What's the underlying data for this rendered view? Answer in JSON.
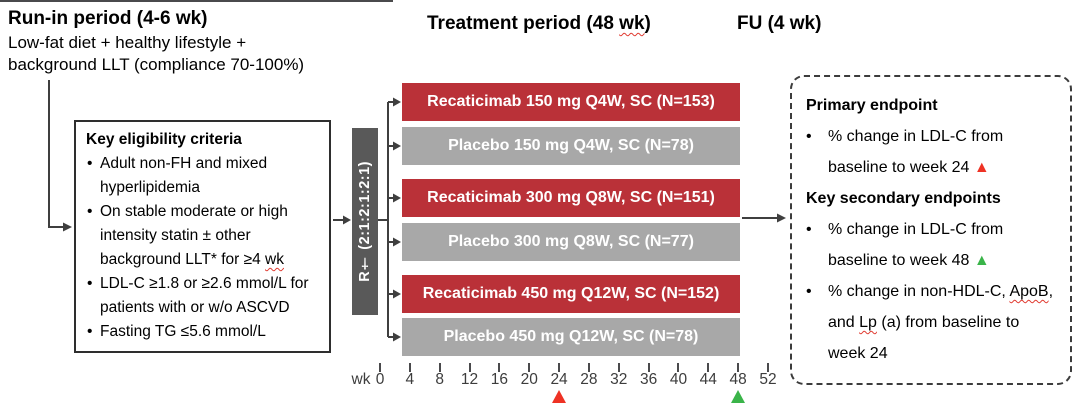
{
  "colors": {
    "active_arm": "#ba3138",
    "placebo_arm": "#a8a8a8",
    "randomization_box": "#595959",
    "marker_red": "#ee3224",
    "marker_green": "#3ab449",
    "connector": "#3f3f3f"
  },
  "glyphs": {
    "bullet": "•"
  },
  "header": {
    "runin_title": "Run-in period (4-6 wk)",
    "runin_desc": "Low-fat diet + healthy lifestyle + background LLT (compliance 70-100%)",
    "treatment_title_pre": "Treatment period (48 ",
    "treatment_title_wavy": "wk",
    "treatment_title_post": ")",
    "fu_title": "FU (4 wk)"
  },
  "eligibility": {
    "title": "Key eligibility criteria",
    "bullet1": "Adult non-FH and mixed hyperlipidemia",
    "bullet2_pre": "On stable moderate or high intensity statin ± other background LLT* for ≥4 ",
    "bullet2_wavy": "wk",
    "bullet3": "LDL-C ≥1.8 or ≥2.6 mmol/L for patients with or w/o ASCVD",
    "bullet4": "Fasting TG ≤5.6 mmol/L"
  },
  "randomization": {
    "label": "R† (2:1:2:1:2:1)"
  },
  "arms": [
    {
      "label": "Recaticimab 150 mg Q4W, SC (N=153)",
      "type": "active"
    },
    {
      "label": "Placebo 150 mg Q4W, SC (N=78)",
      "type": "placebo"
    },
    {
      "label": "Recaticimab 300 mg Q8W, SC (N=151)",
      "type": "active"
    },
    {
      "label": "Placebo 300 mg Q8W, SC (N=77)",
      "type": "placebo"
    },
    {
      "label": "Recaticimab 450 mg Q12W, SC (N=152)",
      "type": "active"
    },
    {
      "label": "Placebo 450 mg Q12W, SC (N=78)",
      "type": "placebo"
    }
  ],
  "axis": {
    "unit_label": "wk",
    "tick_weeks": [
      0,
      4,
      8,
      12,
      16,
      20,
      24,
      28,
      32,
      36,
      40,
      44,
      48,
      52
    ],
    "week_min": 0,
    "week_max": 52,
    "markers": [
      {
        "week": 24,
        "color": "#ee3224",
        "name": "week24-red-triangle-icon"
      },
      {
        "week": 48,
        "color": "#3ab449",
        "name": "week48-green-triangle-icon"
      }
    ]
  },
  "endpoints": {
    "primary_title": "Primary endpoint",
    "p1_text": "% change in LDL-C from baseline to week 24 ",
    "p1_marker": "▲",
    "secondary_title": "Key secondary endpoints",
    "s1_text": "% change in LDL-C from baseline to week 48 ",
    "s1_marker": "▲",
    "s2_part1": "% change in non-HDL-C, ",
    "s2_wavy1": "ApoB",
    "s2_part2": ", and ",
    "s2_wavy2": "Lp",
    "s2_part3": " (a) from baseline to week 24"
  }
}
